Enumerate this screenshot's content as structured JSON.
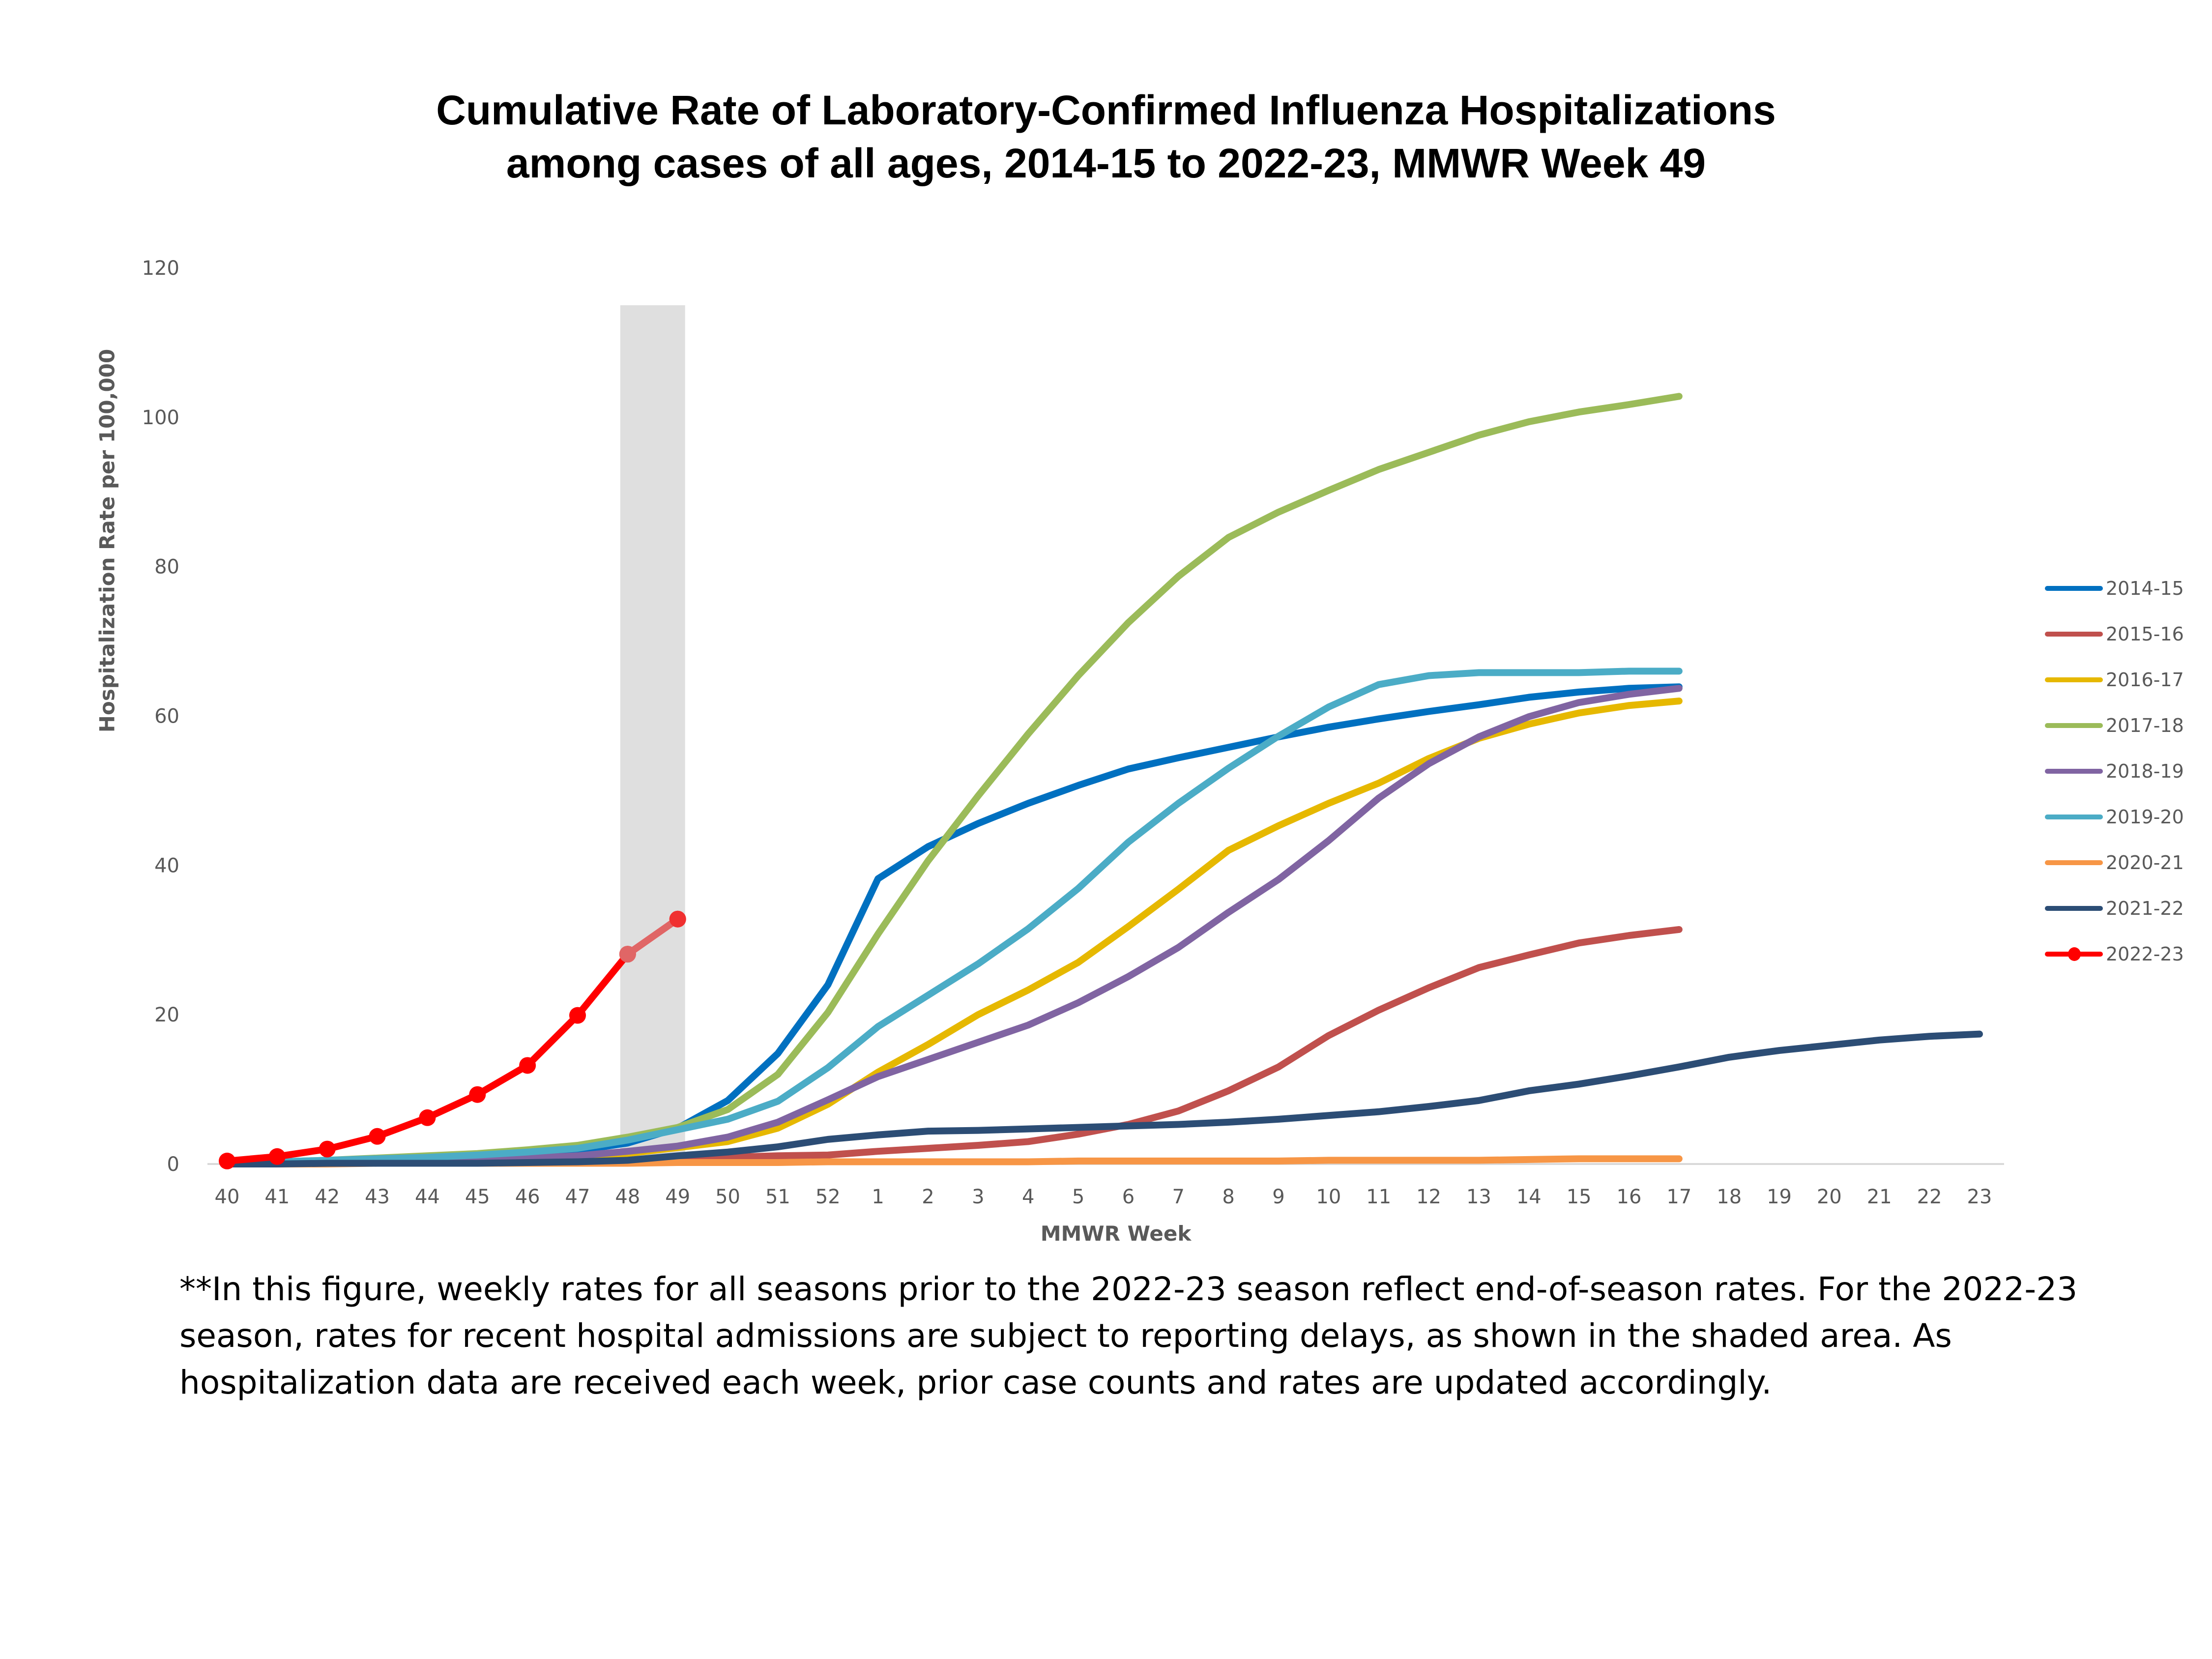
{
  "title": {
    "line1": "Cumulative Rate of Laboratory-Confirmed Influenza Hospitalizations",
    "line2": "among cases of all ages, 2014-15 to 2022-23, MMWR Week 49"
  },
  "axes": {
    "ylabel": "Hospitalization  Rate per 100,000",
    "xlabel": "MMWR Week",
    "yticks": [
      "0",
      "20",
      "40",
      "60",
      "80",
      "100",
      "120"
    ],
    "xticks": [
      "40",
      "41",
      "42",
      "43",
      "44",
      "45",
      "46",
      "47",
      "48",
      "49",
      "50",
      "51",
      "52",
      "1",
      "2",
      "3",
      "4",
      "5",
      "6",
      "7",
      "8",
      "9",
      "10",
      "11",
      "12",
      "13",
      "14",
      "15",
      "16",
      "17",
      "18",
      "19",
      "20",
      "21",
      "22",
      "23"
    ]
  },
  "footnote": "**In this figure, weekly rates for all seasons prior to the 2022-23 season reflect end-of-season rates. For the 2022-23 season, rates for recent hospital admissions are subject to reporting delays, as shown in the shaded area. As hospitalization data are received each week, prior case counts and rates are updated accordingly.",
  "legend": [
    {
      "label": "2014-15",
      "color": "#0070C0"
    },
    {
      "label": "2015-16",
      "color": "#C0504D"
    },
    {
      "label": "2016-17",
      "color": "#E6B800"
    },
    {
      "label": "2017-18",
      "color": "#9BBB59"
    },
    {
      "label": "2018-19",
      "color": "#8064A2"
    },
    {
      "label": "2019-20",
      "color": "#4BACC6"
    },
    {
      "label": "2020-21",
      "color": "#F79646"
    },
    {
      "label": "2021-22",
      "color": "#2C4D75"
    },
    {
      "label": "2022-23",
      "color": "#FF0000",
      "marker": true
    }
  ],
  "chart_data": {
    "type": "line",
    "title": "Cumulative Rate of Laboratory-Confirmed Influenza Hospitalizations among cases of all ages, 2014-15 to 2022-23, MMWR Week 49",
    "xlabel": "MMWR Week",
    "ylabel": "Hospitalization Rate per 100,000",
    "ylim": [
      0,
      120
    ],
    "grid": false,
    "legend_position": "right",
    "shaded_region": {
      "from": "48",
      "to": "49",
      "meaning": "reporting delays",
      "color": "#D9D9D9"
    },
    "x": [
      "40",
      "41",
      "42",
      "43",
      "44",
      "45",
      "46",
      "47",
      "48",
      "49",
      "50",
      "51",
      "52",
      "1",
      "2",
      "3",
      "4",
      "5",
      "6",
      "7",
      "8",
      "9",
      "10",
      "11",
      "12",
      "13",
      "14",
      "15",
      "16",
      "17",
      "18",
      "19",
      "20",
      "21",
      "22",
      "23"
    ],
    "series": [
      {
        "name": "2014-15",
        "color": "#0070C0",
        "values": [
          0.2,
          0.3,
          0.4,
          0.6,
          0.8,
          1.0,
          1.3,
          1.8,
          2.8,
          4.8,
          8.5,
          14.8,
          24.0,
          38.2,
          42.5,
          45.6,
          48.3,
          50.7,
          52.9,
          54.4,
          55.8,
          57.2,
          58.5,
          59.6,
          60.6,
          61.5,
          62.5,
          63.2,
          63.7,
          63.9
        ]
      },
      {
        "name": "2015-16",
        "color": "#C0504D",
        "values": [
          0.1,
          0.1,
          0.1,
          0.2,
          0.2,
          0.3,
          0.3,
          0.4,
          0.5,
          0.6,
          0.9,
          1.1,
          1.2,
          1.7,
          2.1,
          2.5,
          3.0,
          4.0,
          5.3,
          7.1,
          9.8,
          13.0,
          17.2,
          20.6,
          23.6,
          26.3,
          28.0,
          29.6,
          30.6,
          31.4
        ]
      },
      {
        "name": "2016-17",
        "color": "#E6B800",
        "values": [
          0.1,
          0.1,
          0.2,
          0.3,
          0.4,
          0.5,
          0.7,
          0.9,
          1.4,
          2.2,
          3.0,
          4.8,
          8.0,
          12.3,
          16.0,
          20.0,
          23.3,
          27.0,
          31.8,
          36.8,
          42.0,
          45.3,
          48.3,
          51.0,
          54.3,
          57.0,
          58.9,
          60.4,
          61.4,
          62.0
        ]
      },
      {
        "name": "2017-18",
        "color": "#9BBB59",
        "values": [
          0.2,
          0.3,
          0.5,
          0.8,
          1.1,
          1.4,
          1.9,
          2.5,
          3.6,
          4.9,
          7.3,
          12.0,
          20.3,
          30.8,
          40.6,
          49.3,
          57.6,
          65.4,
          72.5,
          78.7,
          83.9,
          87.3,
          90.2,
          93.0,
          95.3,
          97.6,
          99.4,
          100.7,
          101.7,
          102.8
        ]
      },
      {
        "name": "2018-19",
        "color": "#8064A2",
        "values": [
          0.1,
          0.1,
          0.2,
          0.3,
          0.4,
          0.6,
          0.8,
          1.1,
          1.7,
          2.4,
          3.6,
          5.6,
          8.6,
          11.7,
          14.0,
          16.3,
          18.6,
          21.6,
          25.1,
          29.0,
          33.7,
          38.1,
          43.3,
          49.0,
          53.6,
          57.2,
          59.9,
          61.8,
          62.9,
          63.7
        ]
      },
      {
        "name": "2019-20",
        "color": "#4BACC6",
        "values": [
          0.2,
          0.3,
          0.5,
          0.7,
          0.9,
          1.2,
          1.6,
          2.1,
          3.2,
          4.6,
          6.0,
          8.4,
          12.9,
          18.4,
          22.6,
          26.8,
          31.5,
          36.9,
          43.1,
          48.3,
          53.0,
          57.3,
          61.2,
          64.2,
          65.4,
          65.8,
          65.8,
          65.8,
          66.0,
          66.0
        ]
      },
      {
        "name": "2020-21",
        "color": "#F79646",
        "values": [
          0.0,
          0.0,
          0.0,
          0.1,
          0.1,
          0.1,
          0.1,
          0.1,
          0.1,
          0.2,
          0.2,
          0.2,
          0.3,
          0.3,
          0.3,
          0.3,
          0.3,
          0.4,
          0.4,
          0.4,
          0.4,
          0.4,
          0.5,
          0.5,
          0.5,
          0.5,
          0.6,
          0.7,
          0.7,
          0.7
        ]
      },
      {
        "name": "2021-22",
        "color": "#2C4D75",
        "values": [
          0.0,
          0.0,
          0.1,
          0.1,
          0.1,
          0.1,
          0.2,
          0.3,
          0.5,
          1.1,
          1.6,
          2.3,
          3.3,
          3.9,
          4.4,
          4.5,
          4.7,
          4.9,
          5.1,
          5.3,
          5.6,
          6.0,
          6.5,
          7.0,
          7.7,
          8.5,
          9.8,
          10.7,
          11.8,
          13.0,
          14.3,
          15.2,
          15.9,
          16.6,
          17.1,
          17.4
        ]
      },
      {
        "name": "2022-23",
        "color": "#FF0000",
        "marker": "circle",
        "values": [
          0.4,
          1.0,
          2.0,
          3.7,
          6.2,
          9.3,
          13.2,
          19.9,
          28.1,
          32.8
        ]
      }
    ]
  }
}
